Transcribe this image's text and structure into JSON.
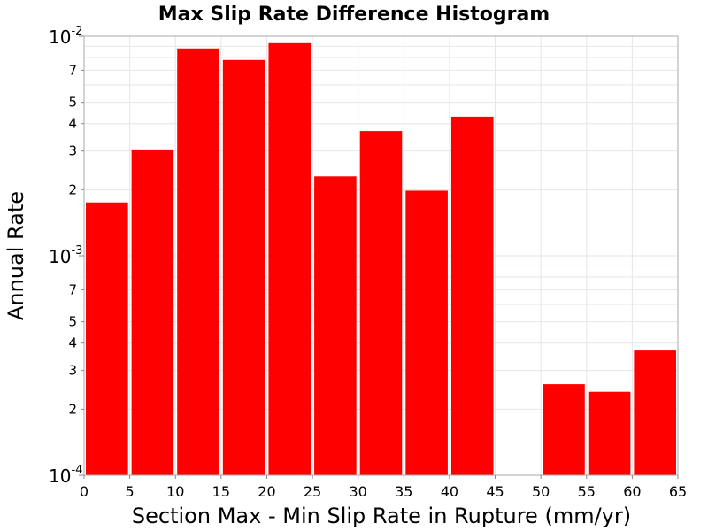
{
  "chart_data": {
    "type": "bar",
    "title": "Max Slip Rate Difference Histogram",
    "xlabel": "Section Max - Min Slip Rate in Rupture (mm/yr)",
    "ylabel": "Annual Rate",
    "xlim": [
      0,
      65
    ],
    "ylim": [
      0.0001,
      0.01
    ],
    "yscale": "log",
    "grid": true,
    "bar_color": "#ff0000",
    "bin_width": 5,
    "bins": [
      {
        "x": 2.5,
        "value": 0.00175
      },
      {
        "x": 7.5,
        "value": 0.00305
      },
      {
        "x": 12.5,
        "value": 0.0088
      },
      {
        "x": 17.5,
        "value": 0.0078
      },
      {
        "x": 22.5,
        "value": 0.0093
      },
      {
        "x": 27.5,
        "value": 0.0023
      },
      {
        "x": 32.5,
        "value": 0.0037
      },
      {
        "x": 37.5,
        "value": 0.00198
      },
      {
        "x": 42.5,
        "value": 0.0043
      },
      {
        "x": 52.5,
        "value": 0.00026
      },
      {
        "x": 57.5,
        "value": 0.00024
      },
      {
        "x": 62.5,
        "value": 0.00037
      }
    ],
    "x_ticks": [
      "0",
      "5",
      "10",
      "15",
      "20",
      "25",
      "30",
      "35",
      "40",
      "45",
      "50",
      "55",
      "60",
      "65"
    ],
    "y_major_ticks": [
      {
        "base": "10",
        "exp": "-4",
        "value": 0.0001
      },
      {
        "base": "10",
        "exp": "-3",
        "value": 0.001
      },
      {
        "base": "10",
        "exp": "-2",
        "value": 0.01
      }
    ],
    "y_minor_ticks": [
      {
        "label": "2",
        "value": 0.0002
      },
      {
        "label": "3",
        "value": 0.0003
      },
      {
        "label": "4",
        "value": 0.0004
      },
      {
        "label": "5",
        "value": 0.0005
      },
      {
        "label": "7",
        "value": 0.0007
      },
      {
        "label": "2",
        "value": 0.002
      },
      {
        "label": "3",
        "value": 0.003
      },
      {
        "label": "4",
        "value": 0.004
      },
      {
        "label": "5",
        "value": 0.005
      },
      {
        "label": "7",
        "value": 0.007
      }
    ]
  }
}
